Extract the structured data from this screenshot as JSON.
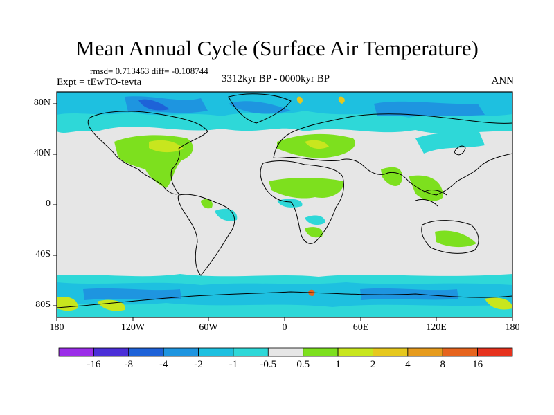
{
  "title": "Mean Annual Cycle (Surface Air Temperature)",
  "stats_text": "rmsd= 0.713463 diff= -0.108744",
  "experiment_label": "Expt = tEwTO-tevta",
  "period_label": "3312kyr BP - 0000kyr BP",
  "season_label": "ANN",
  "lat_ticks": [
    "80N",
    "40N",
    "0",
    "40S",
    "80S"
  ],
  "lon_ticks": [
    "180",
    "120W",
    "60W",
    "0",
    "60E",
    "120E",
    "180"
  ],
  "colorbar": {
    "labels": [
      "-16",
      "-8",
      "-4",
      "-2",
      "-1",
      "-0.5",
      "0.5",
      "1",
      "2",
      "4",
      "8",
      "16"
    ],
    "colors": [
      "#9b2ee8",
      "#4b2fd8",
      "#1e62d8",
      "#1e95e0",
      "#1ec0e0",
      "#2ed8d8",
      "#e6e6e6",
      "#7de01e",
      "#c8e61e",
      "#e6c81e",
      "#e69b1e",
      "#e6641e",
      "#e6321e"
    ]
  }
}
